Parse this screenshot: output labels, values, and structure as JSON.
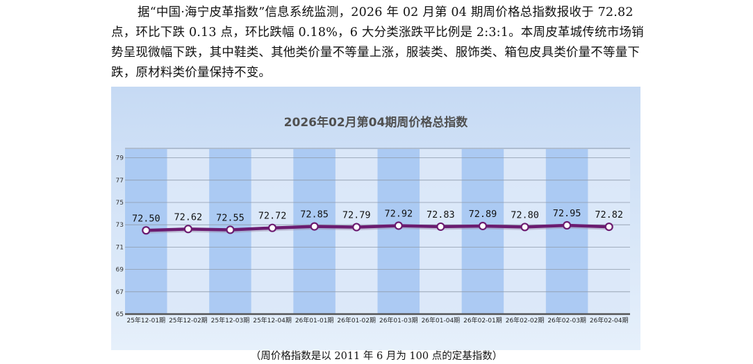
{
  "article": {
    "paragraph": "据“中国·海宁皮革指数”信息系统监测，2026 年 02 月第 04 期周价格总指数报收于 72.82 点，环比下跌 0.13 点，环比跌幅 0.18%，6 大分类涨跌平比例是 2:3:1。本周皮革城传统市场销势呈现微幅下跌，其中鞋类、其他类价量不等量上涨，服装类、服饰类、箱包皮具类价量不等量下跌，原材料类价量保持不变。"
  },
  "caption": "（周价格指数是以 2011 年 6 月为 100 点的定基指数）",
  "colors": {
    "background_top": "#c6daf4",
    "background_bottom": "#e6f0fb",
    "band_dark": "#a9c8f2",
    "band_light": "#dbe8f8",
    "line": "#6b1b70",
    "marker_fill": "#ffffff",
    "grid": "#8e9aaa",
    "title": "#505050"
  },
  "chart_data": {
    "type": "line",
    "title": "2026年02月第04期周价格总指数",
    "xlabel": "",
    "ylabel": "",
    "ylim": [
      65,
      80
    ],
    "yticks": [
      65,
      67,
      69,
      71,
      73,
      75,
      77,
      79
    ],
    "grid": true,
    "legend": "none",
    "categories": [
      "25年12-01期",
      "25年12-02期",
      "25年12-03期",
      "25年12-04期",
      "26年01-01期",
      "26年01-02期",
      "26年01-03期",
      "26年01-04期",
      "26年02-01期",
      "26年02-02期",
      "26年02-03期",
      "26年02-04期"
    ],
    "values": [
      72.5,
      72.62,
      72.55,
      72.72,
      72.85,
      72.79,
      72.92,
      72.83,
      72.89,
      72.8,
      72.95,
      72.82
    ],
    "data_labels": [
      "72.50",
      "72.62",
      "72.55",
      "72.72",
      "72.85",
      "72.79",
      "72.92",
      "72.83",
      "72.89",
      "72.80",
      "72.95",
      "72.82"
    ]
  }
}
